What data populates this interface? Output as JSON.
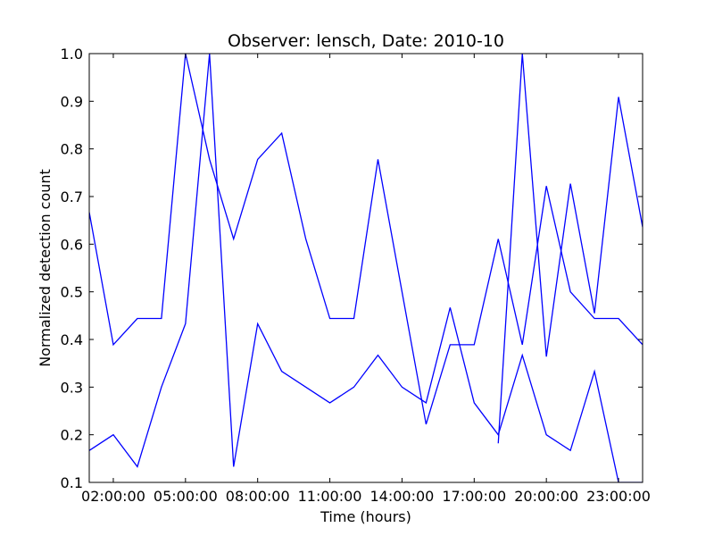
{
  "chart_data": {
    "type": "line",
    "title": "Observer: lensch, Date: 2010-10",
    "xlabel": "Time (hours)",
    "ylabel": "Normalized detection count",
    "xlim": [
      "01:00:00",
      "24:00:00"
    ],
    "ylim": [
      0.1,
      1.0
    ],
    "grid": false,
    "legend": "none",
    "x_ticks": [
      "02:00:00",
      "05:00:00",
      "08:00:00",
      "11:00:00",
      "14:00:00",
      "17:00:00",
      "20:00:00",
      "23:00:00"
    ],
    "y_ticks": [
      "0.1",
      "0.2",
      "0.3",
      "0.4",
      "0.5",
      "0.6",
      "0.7",
      "0.8",
      "0.9",
      "1.0"
    ],
    "series": [
      {
        "color": "#0000ff",
        "x": [
          "01:00:00",
          "02:00:00",
          "03:00:00",
          "04:00:00",
          "05:00:00",
          "06:00:00",
          "07:00:00",
          "08:00:00",
          "09:00:00",
          "10:00:00",
          "11:00:00",
          "12:00:00",
          "13:00:00",
          "14:00:00",
          "15:00:00",
          "16:00:00",
          "17:00:00",
          "18:00:00",
          "19:00:00",
          "20:00:00",
          "21:00:00",
          "22:00:00",
          "23:00:00",
          "24:00:00"
        ],
        "y": [
          0.667,
          0.389,
          0.444,
          0.444,
          1.0,
          0.778,
          0.611,
          0.778,
          0.833,
          0.611,
          0.444,
          0.444,
          0.778,
          0.5,
          0.222,
          0.389,
          0.389,
          0.611,
          0.389,
          0.722,
          0.5,
          0.444,
          0.444,
          0.389
        ]
      },
      {
        "color": "#0000ff",
        "x": [
          "01:00:00",
          "02:00:00",
          "03:00:00",
          "04:00:00",
          "05:00:00",
          "06:00:00",
          "07:00:00",
          "08:00:00",
          "09:00:00",
          "10:00:00",
          "11:00:00",
          "12:00:00",
          "13:00:00",
          "14:00:00",
          "15:00:00",
          "16:00:00",
          "17:00:00",
          "18:00:00",
          "19:00:00",
          "20:00:00",
          "21:00:00",
          "22:00:00",
          "23:00:00",
          "24:00:00"
        ],
        "y": [
          0.167,
          0.2,
          0.133,
          0.3,
          0.433,
          1.0,
          0.133,
          0.433,
          0.333,
          0.3,
          0.267,
          0.3,
          0.367,
          0.3,
          0.267,
          0.467,
          0.267,
          0.2,
          0.367,
          0.2,
          0.167,
          0.333,
          0.1,
          0.1
        ]
      },
      {
        "color": "#0000ff",
        "x": [
          "18:00:00",
          "19:00:00",
          "20:00:00",
          "21:00:00",
          "22:00:00",
          "23:00:00",
          "24:00:00"
        ],
        "y": [
          0.182,
          1.0,
          0.364,
          0.727,
          0.455,
          0.909,
          0.636
        ]
      }
    ]
  }
}
